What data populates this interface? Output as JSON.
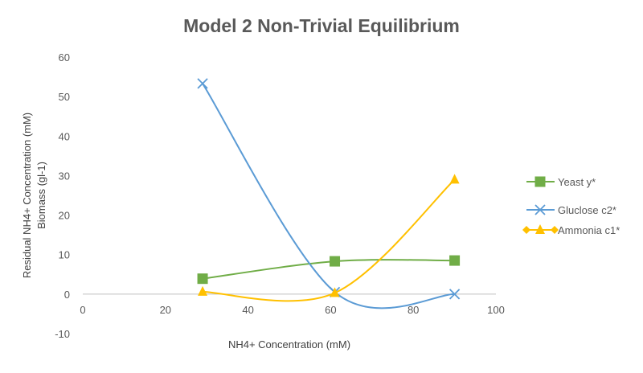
{
  "chart_data": {
    "type": "line",
    "smoothed": true,
    "title": "Model 2 Non-Trivial Equilibrium",
    "xlabel": "NH4+ Concentration (mM)",
    "ylabel": [
      "Residual NH4+ Concentration (mM)",
      "Biomass (gl-1)"
    ],
    "xlim": [
      0,
      100
    ],
    "ylim": [
      -10,
      60
    ],
    "xticks": [
      0,
      20,
      40,
      60,
      80,
      100
    ],
    "yticks": [
      -10,
      0,
      10,
      20,
      30,
      40,
      50,
      60
    ],
    "grid": false,
    "legend_position": "right",
    "series": [
      {
        "name": "Yeast y*",
        "color": "#70AD47",
        "marker": "square",
        "x": [
          29,
          61,
          90
        ],
        "y": [
          3.9,
          8.3,
          8.5
        ]
      },
      {
        "name": "Gluclose c2*",
        "color": "#5B9BD5",
        "marker": "x",
        "x": [
          29,
          61,
          90
        ],
        "y": [
          53.3,
          0.5,
          0
        ]
      },
      {
        "name": "Ammonia c1*",
        "color": "#FFC000",
        "marker": "triangle",
        "x": [
          29,
          61,
          90
        ],
        "y": [
          0.6,
          0.3,
          29
        ]
      }
    ]
  }
}
